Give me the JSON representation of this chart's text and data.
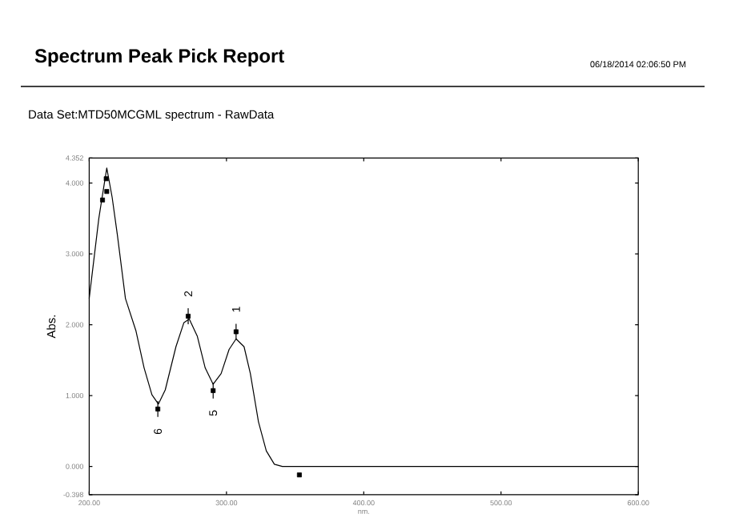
{
  "chart_data": {
    "type": "line",
    "title": "Spectrum Peak Pick Report",
    "subtitle": "Data Set:MTD50MCGML spectrum - RawData",
    "xlabel": "nm.",
    "ylabel": "Abs.",
    "annotations": [
      "06/18/2014    02:06:50 PM",
      {
        "text": "1",
        "x": 307,
        "y": 1.9
      },
      {
        "text": "2",
        "x": 272.1,
        "y": 2.12
      },
      {
        "text": "5",
        "x": 290.3,
        "y": 1.07
      },
      {
        "text": "6",
        "x": 250,
        "y": 0.81
      }
    ],
    "xlim": [
      200,
      600
    ],
    "ylim": [
      -0.398,
      4.352
    ],
    "xticks": [
      {
        "value": 200,
        "label": "200.00"
      },
      {
        "value": 300,
        "label": "300.00"
      },
      {
        "value": 400,
        "label": "400.00"
      },
      {
        "value": 500,
        "label": "500.00"
      },
      {
        "value": 600,
        "label": "600.00"
      }
    ],
    "yticks": [
      -0.398,
      {
        "value": 0,
        "label": "0.000"
      },
      {
        "value": 1,
        "label": "1.000"
      },
      {
        "value": 2,
        "label": "2.000"
      },
      {
        "value": 3,
        "label": "3.000"
      },
      {
        "value": 4,
        "label": "4.000"
      },
      4.352
    ],
    "grid": false,
    "series": [
      {
        "color": "#000000",
        "marker": "none",
        "x": [
          200,
          207,
          210,
          212.8,
          216.7,
          220.5,
          226.4,
          234.1,
          240,
          245.7,
          250.4,
          255.4,
          263.2,
          269,
          272.9,
          278.7,
          284.5,
          290.3,
          296.1,
          301.9,
          307,
          312.8,
          317.4,
          323.3,
          329,
          334.9,
          340.7,
          400,
          500,
          600
        ],
        "values": [
          2.37,
          3.5,
          3.87,
          4.21,
          3.8,
          3.27,
          2.37,
          1.91,
          1.39,
          1.01,
          0.88,
          1.08,
          1.69,
          2.03,
          2.08,
          1.84,
          1.39,
          1.16,
          1.31,
          1.65,
          1.8,
          1.69,
          1.31,
          0.63,
          0.22,
          0.03,
          0,
          0,
          0,
          0
        ]
      },
      {
        "type": "scatter",
        "color": "#000000",
        "marker": "square",
        "x": [
          209.7,
          212.4,
          212.8,
          272.1,
          307,
          290.3,
          250,
          353.1
        ],
        "values": [
          3.76,
          4.06,
          3.88,
          2.12,
          1.9,
          1.07,
          0.81,
          -0.12
        ]
      }
    ]
  }
}
